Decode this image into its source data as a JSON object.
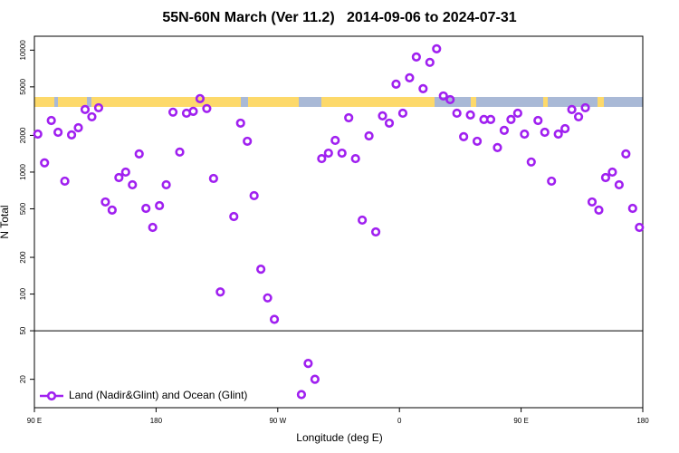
{
  "chart_data": {
    "type": "scatter",
    "title": "55N-60N March (Ver 11.2)   2014-09-06 to 2024-07-31",
    "x_label": "Longitude (deg E)",
    "y_label": "N Total",
    "xlim": [
      90,
      540
    ],
    "xticks": [
      {
        "value": 90,
        "label": "90 E"
      },
      {
        "value": 180,
        "label": "180"
      },
      {
        "value": 270,
        "label": "90 W"
      },
      {
        "value": 360,
        "label": "0"
      },
      {
        "value": 450,
        "label": "90 E"
      },
      {
        "value": 540,
        "label": "180"
      }
    ],
    "ylim": [
      11.7,
      13000
    ],
    "yticks": [
      20,
      50,
      100,
      200,
      500,
      1000,
      2000,
      5000,
      10000
    ],
    "log_y": true,
    "hline": 50,
    "legend": "lower left",
    "series": [
      {
        "name": "Land (Nadir&Glint) and Ocean (Glint)",
        "color": "#a020f0",
        "x": [
          92.5,
          97.5,
          102.5,
          107.5,
          112.5,
          117.5,
          122.5,
          127.5,
          132.5,
          137.5,
          142.5,
          147.5,
          152.5,
          157.5,
          162.5,
          167.5,
          172.5,
          177.5,
          182.5,
          187.5,
          192.5,
          197.5,
          202.5,
          207.5,
          212.5,
          217.5,
          222.5,
          227.5,
          237.5,
          242.5,
          247.5,
          252.5,
          257.5,
          262.5,
          267.5,
          287.5,
          292.5,
          297.5,
          302.5,
          307.5,
          312.5,
          317.5,
          322.5,
          327.5,
          332.5,
          337.5,
          342.5,
          347.5,
          352.5,
          357.5,
          362.5,
          367.5,
          372.5,
          377.5,
          382.5,
          387.5,
          392.5,
          397.5,
          402.5,
          407.5,
          412.5,
          417.5,
          422.5,
          427.5,
          432.5,
          437.5,
          442.5,
          447.5,
          452.5,
          457.5,
          462.5,
          467.5,
          472.5,
          477.5,
          482.5,
          487.5,
          492.5,
          497.5,
          502.5,
          507.5,
          512.5,
          517.5,
          522.5,
          527.5,
          532.5,
          537.5
        ],
        "values": [
          2050,
          1190,
          2650,
          2120,
          843,
          2020,
          2310,
          3260,
          2840,
          3370,
          569,
          488,
          902,
          1000,
          787,
          1410,
          504,
          352,
          531,
          787,
          3100,
          1460,
          3040,
          3150,
          4000,
          3320,
          887,
          104,
          432,
          2520,
          1790,
          641,
          160,
          93,
          62,
          15,
          27,
          20,
          1290,
          1430,
          1820,
          1430,
          2790,
          1290,
          404,
          1980,
          323,
          2890,
          2520,
          5260,
          3040,
          5930,
          8790,
          4830,
          7940,
          10260,
          4210,
          3930,
          3040,
          1950,
          2940,
          1790,
          2700,
          2700,
          1590,
          2200,
          2700,
          3040,
          2050,
          1210,
          2650,
          2120,
          843,
          2050,
          2270,
          3260,
          2840,
          3370,
          569,
          488,
          902,
          1000,
          787,
          1410,
          504,
          352
        ]
      }
    ]
  }
}
